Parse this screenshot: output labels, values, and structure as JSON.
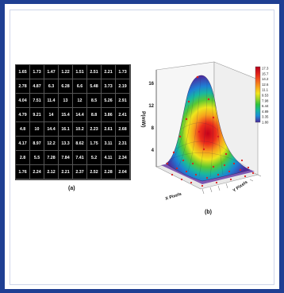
{
  "figure": {
    "panel_a": {
      "caption": "(a)",
      "grid": [
        [
          "1.65",
          "1.73",
          "1.47",
          "1.22",
          "1.51",
          "2.51",
          "2.21",
          "1.73"
        ],
        [
          "2.78",
          "4.87",
          "6.3",
          "6.28",
          "6.6",
          "5.48",
          "3.73",
          "2.19"
        ],
        [
          "4.04",
          "7.51",
          "11.4",
          "13",
          "12",
          "8.5",
          "5.26",
          "2.91"
        ],
        [
          "4.79",
          "9.21",
          "14",
          "15.4",
          "14.4",
          "8.8",
          "3.86",
          "2.41"
        ],
        [
          "4.8",
          "10",
          "14.4",
          "16.1",
          "10.2",
          "2.23",
          "2.61",
          "2.68"
        ],
        [
          "4.17",
          "8.97",
          "12.2",
          "13.3",
          "8.62",
          "1.75",
          "3.11",
          "2.31"
        ],
        [
          "2.8",
          "5.5",
          "7.28",
          "7.84",
          "7.41",
          "5.2",
          "4.11",
          "2.34"
        ],
        [
          "1.76",
          "2.24",
          "2.12",
          "2.21",
          "2.37",
          "2.52",
          "2.28",
          "2.04"
        ]
      ]
    },
    "panel_b": {
      "caption": "(b)",
      "z_label": "P(mW)",
      "x_label": "X Pixels",
      "y_label": "Y Pixels",
      "z_ticks": [
        "4",
        "8",
        "12",
        "16"
      ],
      "colorbar_ticks": [
        "17.3",
        "15.7",
        "14.2",
        "12.6",
        "11.1",
        "9.53",
        "7.98",
        "6.44",
        "4.89",
        "3.35",
        "1.80"
      ],
      "colorbar_colors": [
        "#b3001b",
        "#e0201b",
        "#f25a1e",
        "#f7a01c",
        "#f3e51c",
        "#9bd42a",
        "#2bc23d",
        "#17b79b",
        "#1c8fd6",
        "#2a49c8",
        "#4a2a9c"
      ]
    }
  }
}
